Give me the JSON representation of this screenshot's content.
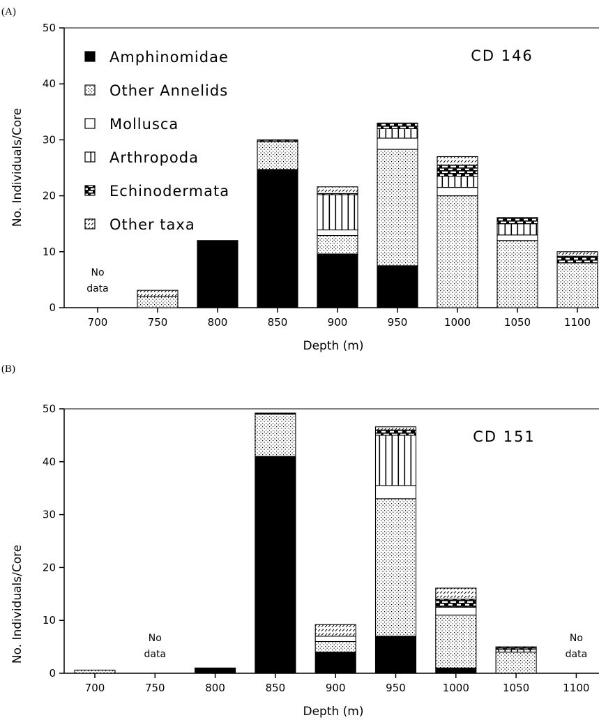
{
  "chart_data": [
    {
      "type": "bar",
      "panel_label": "(A)",
      "annotation": "CD 146",
      "xlabel": "Depth (m)",
      "ylabel": "No. Individuals/Core",
      "ylim": [
        0,
        50
      ],
      "yticks": [
        "0",
        "10",
        "20",
        "30",
        "40",
        "50"
      ],
      "categories": [
        "700",
        "750",
        "800",
        "850",
        "900",
        "950",
        "1000",
        "1050",
        "1100"
      ],
      "stacked": true,
      "legend_placement": "top-left",
      "no_data": [
        {
          "category": "700",
          "line1": "No",
          "line2": "data"
        }
      ],
      "series": [
        {
          "name": "Amphinomidae",
          "pattern": "solid",
          "values": [
            0,
            0,
            12,
            24.7,
            9.6,
            7.5,
            0,
            0,
            0
          ]
        },
        {
          "name": "Other Annelids",
          "pattern": "dots",
          "values": [
            0,
            2,
            0,
            5,
            3.3,
            20.8,
            20,
            12,
            8
          ]
        },
        {
          "name": "Mollusca",
          "pattern": "blank",
          "values": [
            0,
            0,
            0,
            0,
            1,
            2,
            1.5,
            1,
            0
          ]
        },
        {
          "name": "Arthropoda",
          "pattern": "vlines",
          "values": [
            0,
            0,
            0,
            0,
            6.3,
            1.7,
            2,
            2,
            0
          ]
        },
        {
          "name": "Echinodermata",
          "pattern": "bricks",
          "values": [
            0,
            0,
            0,
            0.3,
            0.2,
            1,
            2,
            1,
            1.2
          ]
        },
        {
          "name": "Other taxa",
          "pattern": "dashes",
          "values": [
            0,
            1.1,
            0,
            0,
            1.2,
            0,
            1.5,
            0.1,
            0.8
          ]
        }
      ]
    },
    {
      "type": "bar",
      "panel_label": "(B)",
      "annotation": "CD 151",
      "xlabel": "Depth (m)",
      "ylabel": "No. Individuals/Core",
      "ylim": [
        0,
        50
      ],
      "yticks": [
        "0",
        "10",
        "20",
        "30",
        "40",
        "50"
      ],
      "categories": [
        "700",
        "750",
        "800",
        "850",
        "900",
        "950",
        "1000",
        "1050",
        "1100"
      ],
      "stacked": true,
      "no_data": [
        {
          "category": "750",
          "line1": "No",
          "line2": "data"
        },
        {
          "category": "1100",
          "line1": "No",
          "line2": "data"
        }
      ],
      "series": [
        {
          "name": "Amphinomidae",
          "pattern": "solid",
          "values": [
            0,
            0,
            1,
            41,
            4,
            7,
            1,
            0,
            0
          ]
        },
        {
          "name": "Other Annelids",
          "pattern": "dots",
          "values": [
            0.6,
            0,
            0,
            8,
            2,
            26,
            10,
            4,
            0
          ]
        },
        {
          "name": "Mollusca",
          "pattern": "blank",
          "values": [
            0,
            0,
            0,
            0,
            1,
            2.5,
            1.5,
            0,
            0
          ]
        },
        {
          "name": "Arthropoda",
          "pattern": "vlines",
          "values": [
            0,
            0,
            0,
            0,
            0,
            9.5,
            0,
            0.5,
            0
          ]
        },
        {
          "name": "Echinodermata",
          "pattern": "bricks",
          "values": [
            0,
            0,
            0,
            0.2,
            0,
            1,
            1.5,
            0.5,
            0
          ]
        },
        {
          "name": "Other taxa",
          "pattern": "dashes",
          "values": [
            0,
            0,
            0,
            0,
            2.2,
            0.6,
            2.1,
            0,
            0
          ]
        }
      ]
    }
  ]
}
